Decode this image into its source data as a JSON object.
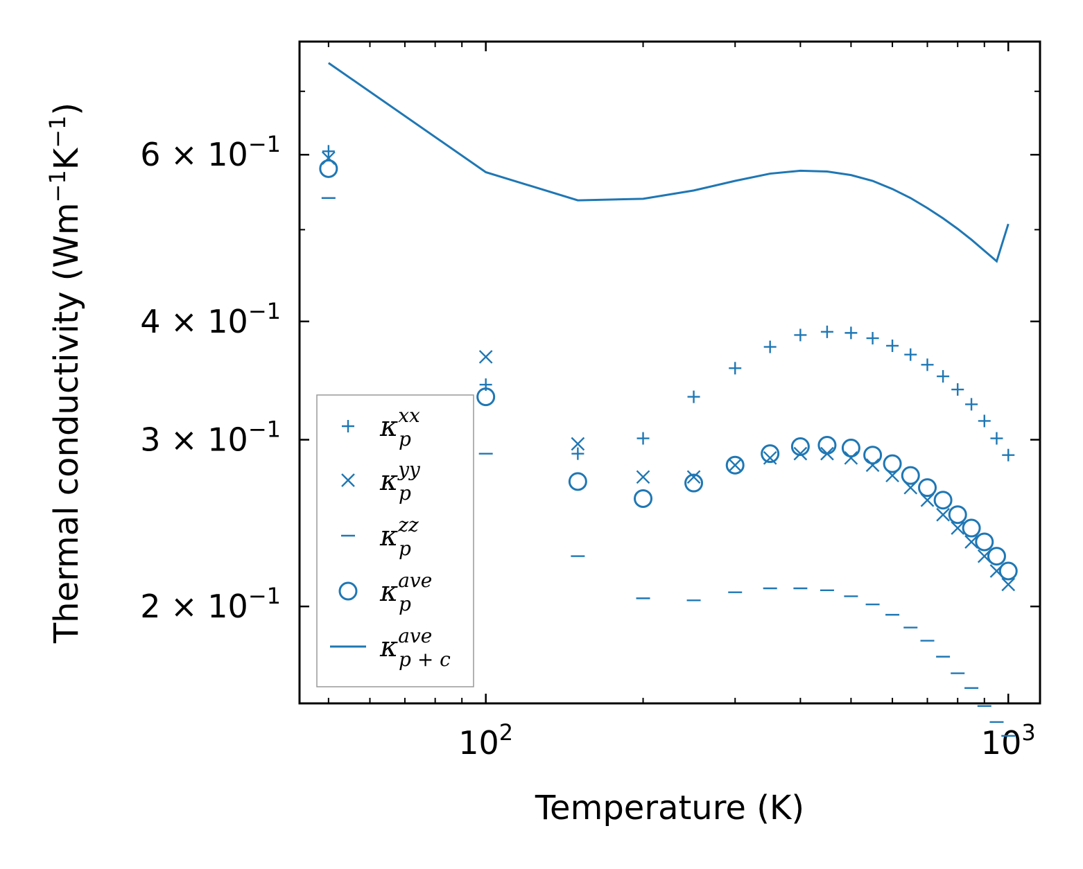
{
  "chart_data": {
    "type": "scatter",
    "xlabel": "Temperature (K)",
    "ylabel": "Thermal conductivity (Wm",
    "ylabel_unit_parts": [
      "−1",
      "K",
      "−1",
      ")"
    ],
    "xscale": "log",
    "yscale": "log",
    "xlim": [
      44,
      1150
    ],
    "ylim": [
      0.158,
      0.79
    ],
    "x_ticks": [
      {
        "value": 100,
        "base": "10",
        "exp": "2"
      },
      {
        "value": 1000,
        "base": "10",
        "exp": "3"
      }
    ],
    "y_ticks": [
      {
        "value": 0.2,
        "mant": "2",
        "base": "× 10",
        "exp": "−1"
      },
      {
        "value": 0.3,
        "mant": "3",
        "base": "× 10",
        "exp": "−1"
      },
      {
        "value": 0.4,
        "mant": "4",
        "base": "× 10",
        "exp": "−1"
      },
      {
        "value": 0.6,
        "mant": "6",
        "base": "× 10",
        "exp": "−1"
      }
    ],
    "color": "#1f77b4",
    "x": [
      50,
      100,
      150,
      200,
      250,
      300,
      350,
      400,
      450,
      500,
      550,
      600,
      650,
      700,
      750,
      800,
      850,
      900,
      950,
      1000
    ],
    "series": [
      {
        "name": "κ_p^xx",
        "label": "κ",
        "sub": "p",
        "sup": "xx",
        "marker": "plus",
        "values": [
          0.605,
          0.343,
          0.29,
          0.301,
          0.333,
          0.357,
          0.376,
          0.387,
          0.39,
          0.389,
          0.384,
          0.377,
          0.369,
          0.36,
          0.35,
          0.339,
          0.327,
          0.314,
          0.301,
          0.289
        ]
      },
      {
        "name": "κ_p^yy",
        "label": "κ",
        "sub": "p",
        "sup": "yy",
        "marker": "x",
        "values": [
          0.595,
          0.367,
          0.297,
          0.274,
          0.274,
          0.282,
          0.287,
          0.29,
          0.29,
          0.287,
          0.282,
          0.275,
          0.267,
          0.259,
          0.25,
          0.242,
          0.234,
          0.226,
          0.218,
          0.211
        ]
      },
      {
        "name": "κ_p^zz",
        "label": "κ",
        "sub": "p",
        "sup": "zz",
        "marker": "hline",
        "values": [
          0.54,
          0.29,
          0.226,
          0.204,
          0.203,
          0.207,
          0.209,
          0.209,
          0.208,
          0.205,
          0.201,
          0.196,
          0.19,
          0.184,
          0.177,
          0.17,
          0.164,
          0.157,
          0.151,
          0.146
        ]
      },
      {
        "name": "κ_p^ave",
        "label": "κ",
        "sub": "p",
        "sup": "ave",
        "marker": "circle",
        "values": [
          0.58,
          0.333,
          0.271,
          0.26,
          0.27,
          0.282,
          0.29,
          0.295,
          0.296,
          0.294,
          0.289,
          0.283,
          0.275,
          0.267,
          0.259,
          0.25,
          0.242,
          0.234,
          0.226,
          0.218
        ]
      },
      {
        "name": "κ_p+c^ave",
        "label": "κ",
        "sub": "p + c",
        "sup": "ave",
        "marker": "line",
        "values": [
          0.75,
          0.575,
          0.537,
          0.539,
          0.55,
          0.563,
          0.573,
          0.577,
          0.576,
          0.571,
          0.563,
          0.552,
          0.54,
          0.527,
          0.514,
          0.501,
          0.488,
          0.475,
          0.463,
          0.507
        ]
      }
    ],
    "legend_position": "lower-left"
  }
}
